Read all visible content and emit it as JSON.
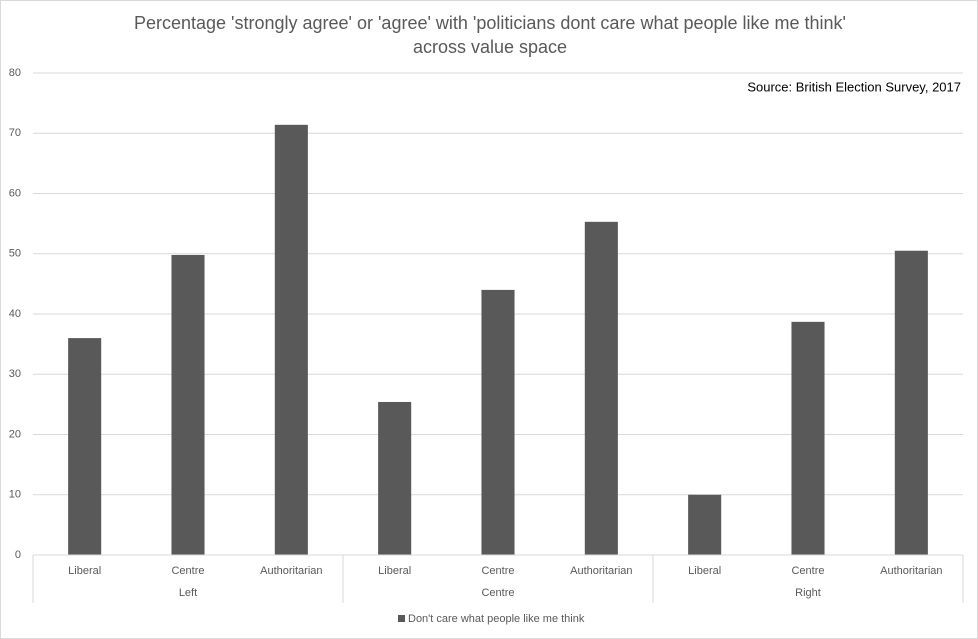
{
  "chart_data": {
    "type": "bar",
    "title": "Percentage 'strongly agree' or 'agree' with 'politicians dont care what people like me think' across value space",
    "annotation": "Source: British Election Survey, 2017",
    "groups": [
      {
        "name": "Left",
        "categories": [
          "Liberal",
          "Centre",
          "Authoritarian"
        ]
      },
      {
        "name": "Centre",
        "categories": [
          "Liberal",
          "Centre",
          "Authoritarian"
        ]
      },
      {
        "name": "Right",
        "categories": [
          "Liberal",
          "Centre",
          "Authoritarian"
        ]
      }
    ],
    "series": [
      {
        "name": "Don't care what people like me think",
        "color": "#595959",
        "values": [
          36.0,
          49.8,
          71.4,
          25.4,
          44.0,
          55.3,
          10.0,
          38.7,
          50.5
        ]
      }
    ],
    "ylim": [
      0,
      80
    ],
    "yticks": [
      0,
      10,
      20,
      30,
      40,
      50,
      60,
      70,
      80
    ],
    "grid": true,
    "legend": "bottom"
  }
}
